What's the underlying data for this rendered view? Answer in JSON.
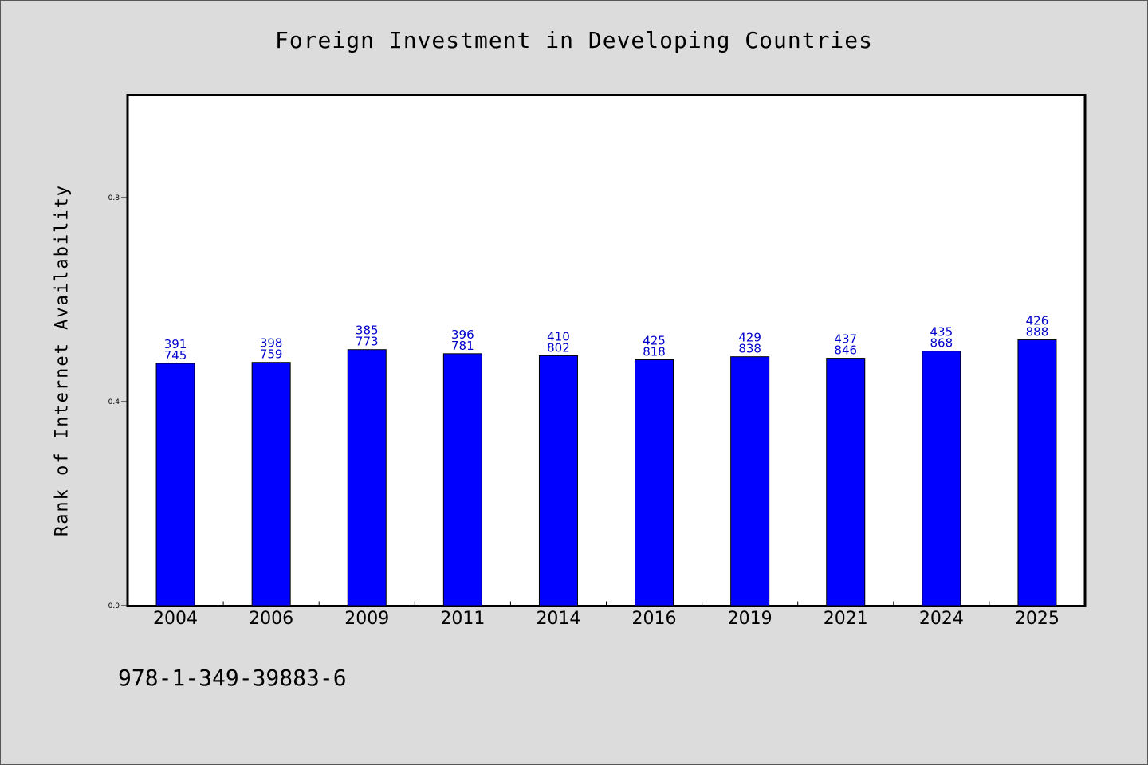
{
  "title": "Foreign Investment in Developing Countries",
  "footer_code": "978-1-349-39883-6",
  "colors": {
    "background": "#dcdcdc",
    "plot_bg": "#ffffff",
    "bar": "#0000ff",
    "label": "#0000cc"
  },
  "chart_data": {
    "type": "bar",
    "title": "Foreign Investment in Developing Countries",
    "xlabel": "",
    "ylabel": "Rank of Internet Availability",
    "ylim": [
      0,
      1.0
    ],
    "yticks": [
      "0.0",
      "0.4",
      "0.8"
    ],
    "ytick_values": [
      0.0,
      0.4,
      0.8
    ],
    "grid": false,
    "legend": "none",
    "categories": [
      "2004",
      "2006",
      "2009",
      "2011",
      "2014",
      "2016",
      "2019",
      "2021",
      "2024",
      "2025"
    ],
    "values": [
      0.475,
      0.477,
      0.502,
      0.494,
      0.49,
      0.482,
      0.488,
      0.485,
      0.499,
      0.521
    ],
    "data_labels_top": [
      "391",
      "398",
      "385",
      "396",
      "410",
      "425",
      "429",
      "437",
      "435",
      "426"
    ],
    "data_labels_bottom": [
      "745",
      "759",
      "773",
      "781",
      "802",
      "818",
      "838",
      "846",
      "868",
      "888"
    ]
  }
}
